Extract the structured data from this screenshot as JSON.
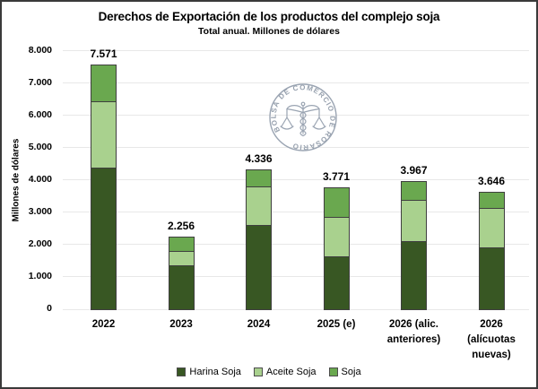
{
  "watermark": "BOLSA DE COMERCIO DE ROSARIO",
  "chart_data": {
    "type": "bar",
    "stacked": true,
    "title": "Derechos de Exportación de los productos del complejo soja",
    "subtitle": "Total anual. Millones de dólares",
    "ylabel": "Millones de dólares",
    "xlabel": "",
    "ylim": [
      0,
      8000
    ],
    "grid": true,
    "legend_position": "bottom",
    "y_ticks": [
      "0",
      "1.000",
      "2.000",
      "3.000",
      "4.000",
      "5.000",
      "6.000",
      "7.000",
      "8.000"
    ],
    "categories": [
      "2022",
      "2023",
      "2024",
      "2025 (e)",
      "2026 (alic. anteriores)",
      "2026 (alícuotas nuevas)"
    ],
    "category_label_lines": [
      [
        "2022"
      ],
      [
        "2023"
      ],
      [
        "2024"
      ],
      [
        "2025 (e)"
      ],
      [
        "2026 (alic.",
        "anteriores)"
      ],
      [
        "2026",
        "(alícuotas",
        "nuevas)"
      ]
    ],
    "totals": [
      7571,
      2256,
      4336,
      3771,
      3967,
      3646
    ],
    "total_labels": [
      "7.571",
      "2.256",
      "4.336",
      "3.771",
      "3.967",
      "3.646"
    ],
    "series": [
      {
        "name": "Harina Soja",
        "color": "#385723",
        "values": [
          4380,
          1350,
          2620,
          1640,
          2100,
          1920
        ]
      },
      {
        "name": "Aceite Soja",
        "color": "#A9D18E",
        "values": [
          2060,
          440,
          1170,
          1210,
          1280,
          1210
        ]
      },
      {
        "name": "Soja",
        "color": "#6AA84F",
        "values": [
          1131,
          466,
          546,
          921,
          587,
          516
        ]
      }
    ],
    "colors": {
      "grid": "#e8e8e8",
      "bar_border": "#3f3f3f",
      "watermark": "#9aa4b2",
      "text": "#000000"
    }
  }
}
